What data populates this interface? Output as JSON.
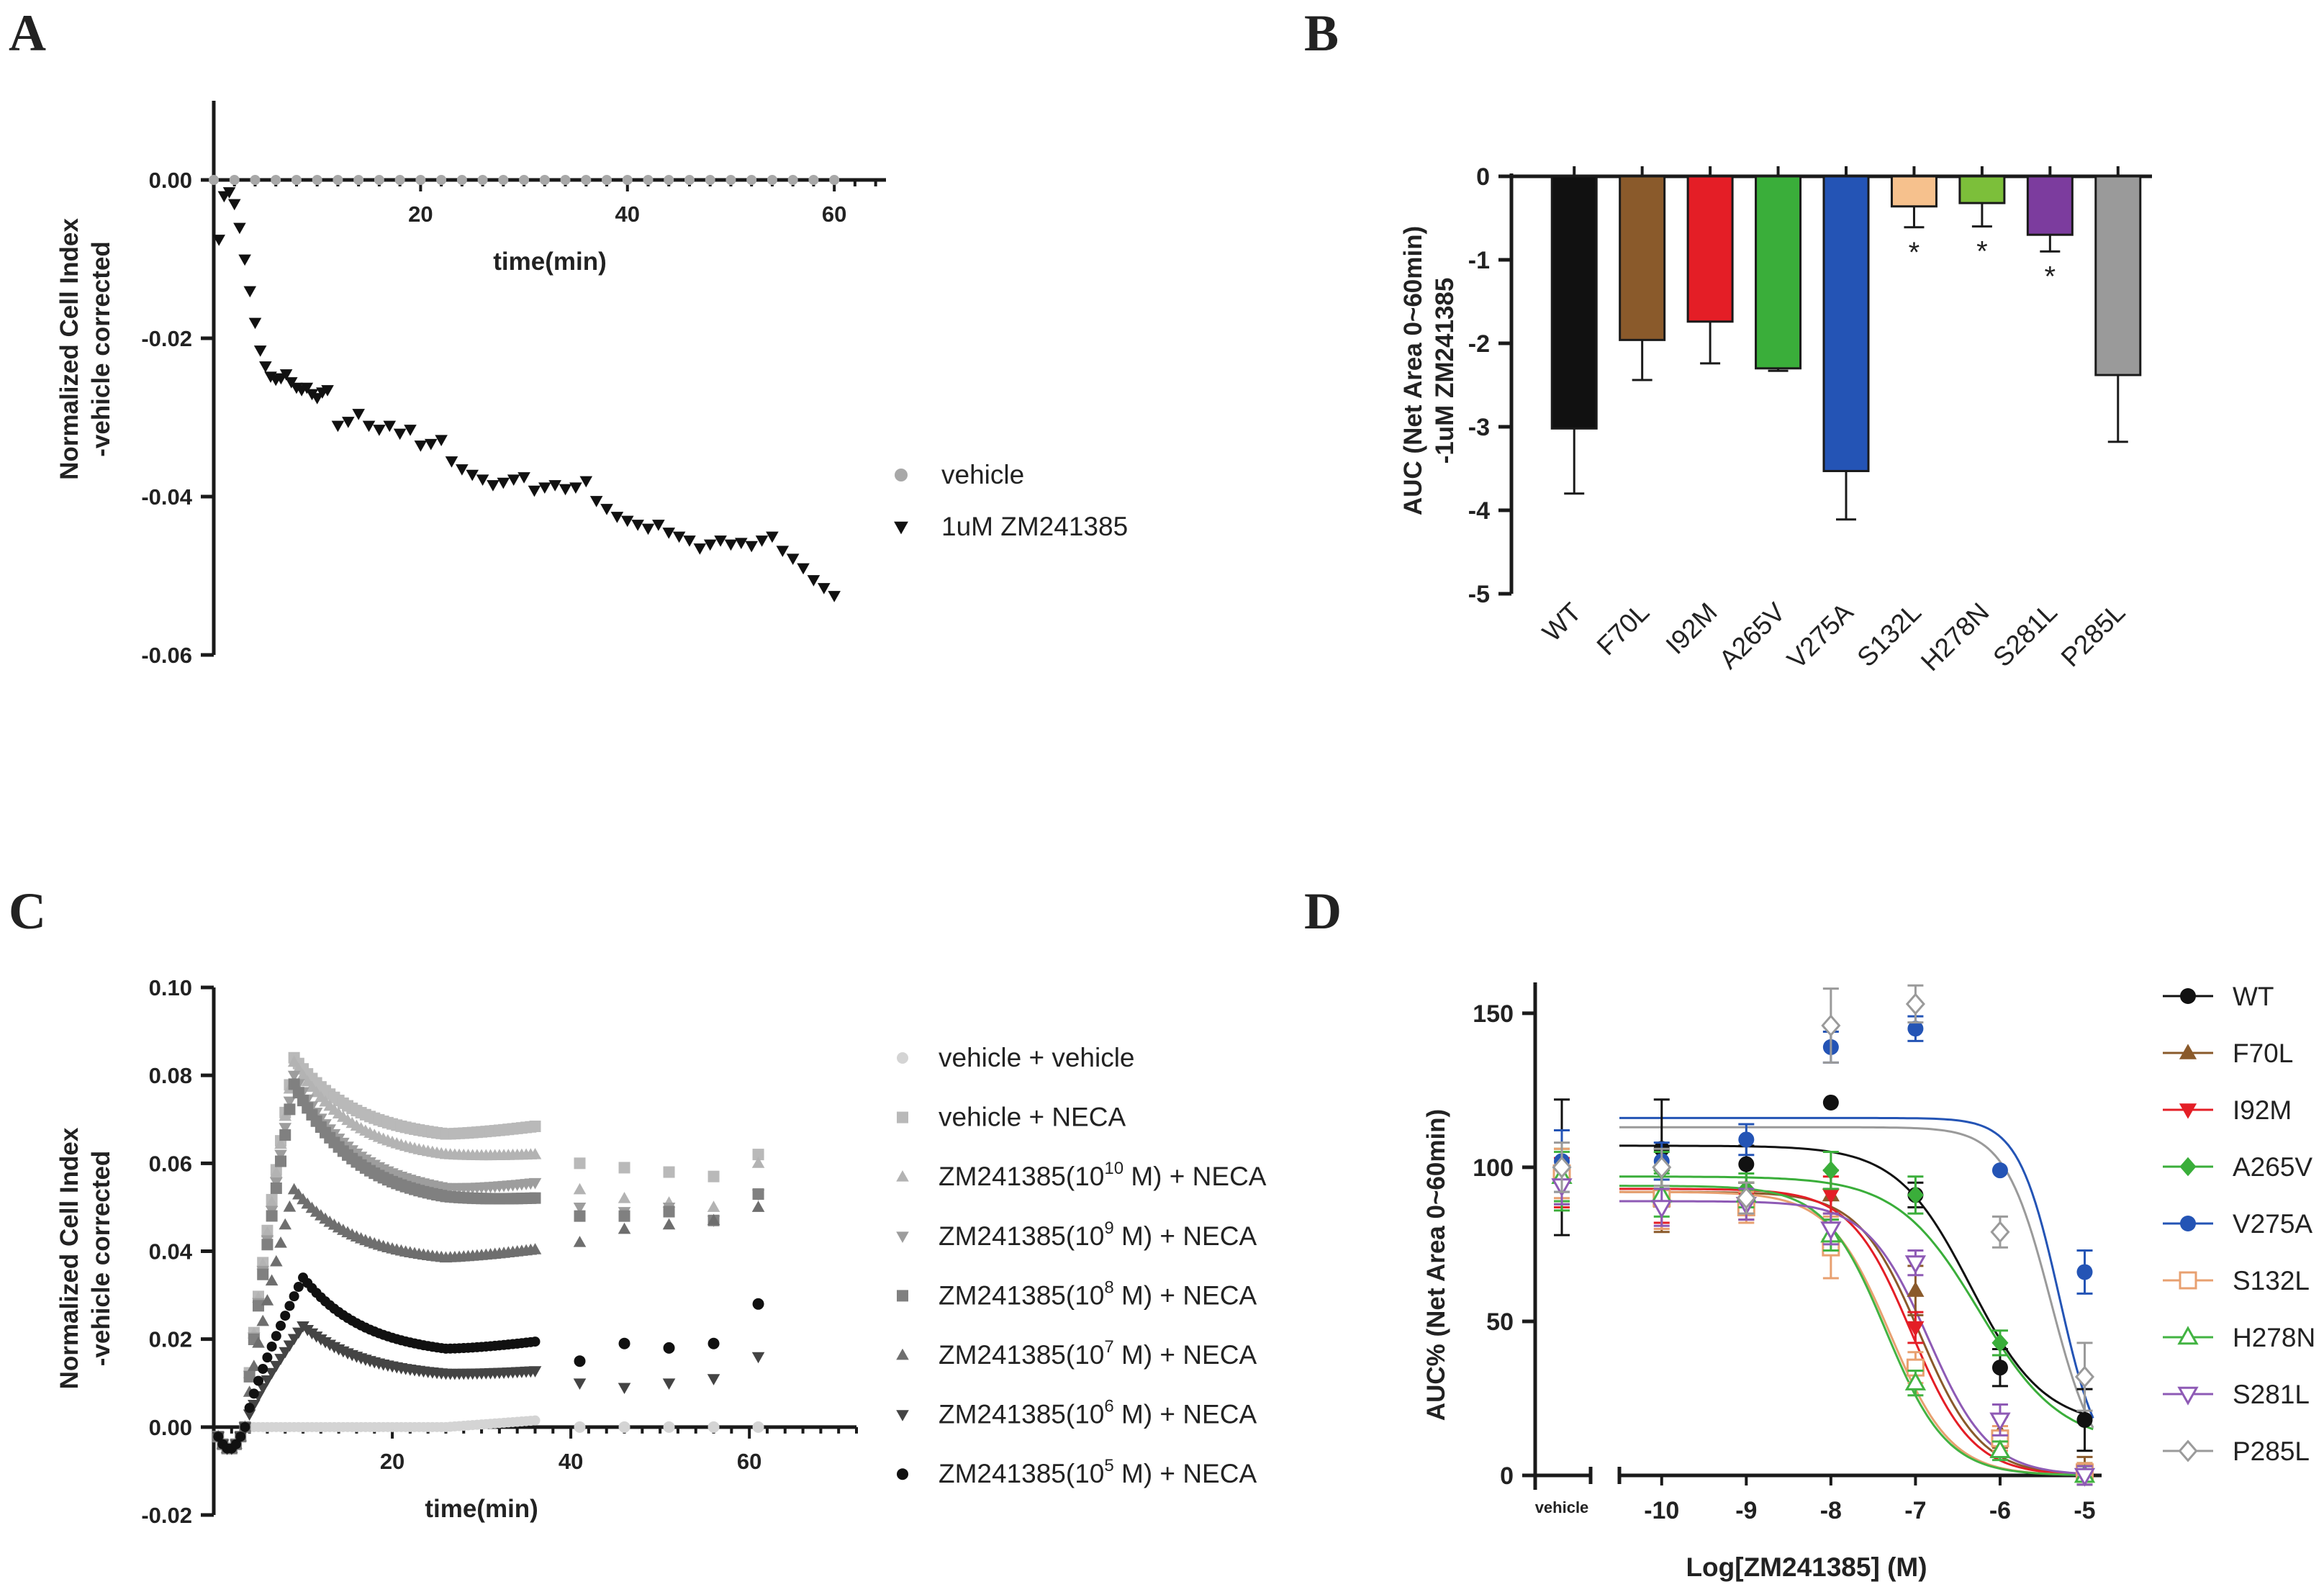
{
  "panel_labels": {
    "a": "A",
    "b": "B",
    "c": "C",
    "d": "D"
  },
  "colors": {
    "axis": "#1a1a1a",
    "grey": "#a8a8a8",
    "black": "#111111",
    "WT": "#111111",
    "F70L": "#8a5a2b",
    "I92M": "#e41e26",
    "A265V": "#3aae3a",
    "V275A": "#2454b5",
    "S132L": "#f6c18d",
    "H278N": "#7cbf3a",
    "S281L": "#7c3c9e",
    "P285L": "#9a9a9a",
    "D_S132L": "#e8a070",
    "D_H278N": "#42b342",
    "D_S281L": "#8e5ab5"
  },
  "chart_data": [
    {
      "panel": "A",
      "type": "scatter",
      "title": "",
      "xlabel": "time(min)",
      "ylabel": "Normalized Cell Index -vehicle corrected",
      "ylabel_lines": [
        "Normalized Cell Index",
        "-vehicle corrected"
      ],
      "xlim": [
        0,
        65
      ],
      "ylim": [
        -0.06,
        0.01
      ],
      "xticks": [
        20,
        40,
        60
      ],
      "yticks": [
        {
          "v": 0,
          "label": "0.00"
        },
        {
          "v": -0.02,
          "label": "-0.02"
        },
        {
          "v": -0.04,
          "label": "-0.04"
        },
        {
          "v": -0.06,
          "label": "-0.06"
        }
      ],
      "legend": [
        {
          "label": "vehicle",
          "marker": "circle",
          "color": "#a8a8a8"
        },
        {
          "label": "1uM ZM241385",
          "marker": "tri-down",
          "color": "#111111"
        }
      ],
      "series": [
        {
          "name": "vehicle",
          "marker": "circle",
          "color": "#a8a8a8",
          "x": [
            0,
            2,
            4,
            6,
            8,
            10,
            12,
            14,
            16,
            18,
            20,
            22,
            24,
            26,
            28,
            30,
            32,
            34,
            36,
            38,
            40,
            42,
            44,
            46,
            48,
            50,
            52,
            54,
            56,
            58,
            60
          ],
          "y": [
            0,
            0,
            0,
            0,
            0,
            0,
            0,
            0,
            0,
            0,
            0,
            0,
            0,
            0,
            0,
            0,
            0,
            0,
            0,
            0,
            0,
            0,
            0,
            0,
            0,
            0,
            0,
            0,
            0,
            0,
            0
          ]
        },
        {
          "name": "1uM ZM241385",
          "marker": "tri-down",
          "color": "#111111",
          "x": [
            0.5,
            1,
            1.5,
            2,
            2.5,
            3,
            3.5,
            4,
            4.5,
            5,
            5.5,
            6,
            6.5,
            7,
            7.5,
            8,
            8.5,
            9,
            9.5,
            10,
            10.5,
            11,
            12,
            13,
            14,
            15,
            16,
            17,
            18,
            19,
            20,
            21,
            22,
            23,
            24,
            25,
            26,
            27,
            28,
            29,
            30,
            31,
            32,
            33,
            34,
            35,
            36,
            37,
            38,
            39,
            40,
            41,
            42,
            43,
            44,
            45,
            46,
            47,
            48,
            49,
            50,
            51,
            52,
            53,
            54,
            55,
            56,
            57,
            58,
            59,
            60
          ],
          "y": [
            -0.0075,
            -0.002,
            -0.0015,
            -0.003,
            -0.006,
            -0.01,
            -0.014,
            -0.018,
            -0.0215,
            -0.0235,
            -0.0248,
            -0.0252,
            -0.025,
            -0.0245,
            -0.0255,
            -0.0262,
            -0.0265,
            -0.0262,
            -0.027,
            -0.0275,
            -0.0268,
            -0.0265,
            -0.031,
            -0.0305,
            -0.0295,
            -0.031,
            -0.0315,
            -0.031,
            -0.032,
            -0.0315,
            -0.0335,
            -0.0333,
            -0.0328,
            -0.0355,
            -0.0365,
            -0.0372,
            -0.0378,
            -0.0385,
            -0.0382,
            -0.0378,
            -0.0375,
            -0.0392,
            -0.0388,
            -0.0385,
            -0.039,
            -0.0388,
            -0.038,
            -0.0405,
            -0.0415,
            -0.0425,
            -0.043,
            -0.0435,
            -0.044,
            -0.0435,
            -0.0445,
            -0.045,
            -0.0455,
            -0.0465,
            -0.046,
            -0.0455,
            -0.046,
            -0.0458,
            -0.0462,
            -0.0455,
            -0.045,
            -0.0468,
            -0.0478,
            -0.049,
            -0.0505,
            -0.0515,
            -0.0525
          ]
        }
      ]
    },
    {
      "panel": "B",
      "type": "bar",
      "xlabel": "",
      "ylabel": "AUC (Net Area 0~60min) -1uM ZM241385",
      "ylabel_lines": [
        "AUC (Net Area 0~60min)",
        "-1uM ZM241385"
      ],
      "ylim": [
        -5,
        0
      ],
      "yticks": [
        0,
        -1,
        -2,
        -3,
        -4,
        -5
      ],
      "categories": [
        "WT",
        "F70L",
        "I92M",
        "A265V",
        "V275A",
        "S132L",
        "H278N",
        "S281L",
        "P285L"
      ],
      "values": [
        -3.02,
        -1.96,
        -1.74,
        -2.3,
        -3.53,
        -0.36,
        -0.32,
        -0.7,
        -2.38
      ],
      "errors": [
        0.78,
        0.48,
        0.5,
        0.03,
        0.58,
        0.25,
        0.28,
        0.2,
        0.8
      ],
      "significance": [
        "",
        "",
        "",
        "",
        "",
        "*",
        "*",
        "*",
        ""
      ]
    },
    {
      "panel": "C",
      "type": "scatter",
      "xlabel": "time(min)",
      "ylabel": "Normalized Cell Index -vehicle corrected",
      "ylabel_lines": [
        "Normalized Cell Index",
        "-vehicle corrected"
      ],
      "xlim": [
        0,
        72
      ],
      "ylim": [
        -0.02,
        0.1
      ],
      "xticks": [
        20,
        40,
        60
      ],
      "yticks": [
        {
          "v": 0.1,
          "label": "0.10"
        },
        {
          "v": 0.08,
          "label": "0.08"
        },
        {
          "v": 0.06,
          "label": "0.06"
        },
        {
          "v": 0.04,
          "label": "0.04"
        },
        {
          "v": 0.02,
          "label": "0.02"
        },
        {
          "v": 0,
          "label": "0.00"
        },
        {
          "v": -0.02,
          "label": "-0.02"
        }
      ],
      "legend": [
        {
          "pre": "vehicle + vehicle",
          "sup": "",
          "post": "",
          "marker": "circle",
          "color": "#d4d4d4"
        },
        {
          "pre": "vehicle + NECA",
          "sup": "",
          "post": "",
          "marker": "square",
          "color": "#b9b9b9"
        },
        {
          "pre": "ZM241385(10",
          "sup": "10",
          "post": " M) + NECA",
          "marker": "tri-up",
          "color": "#b3b3b3"
        },
        {
          "pre": "ZM241385(10",
          "sup": "9",
          "post": " M) + NECA",
          "marker": "tri-down",
          "color": "#9d9d9d"
        },
        {
          "pre": "ZM241385(10",
          "sup": "8",
          "post": " M) + NECA",
          "marker": "square",
          "color": "#808080"
        },
        {
          "pre": "ZM241385(10",
          "sup": "7",
          "post": " M) + NECA",
          "marker": "tri-up",
          "color": "#6e6e6e"
        },
        {
          "pre": "ZM241385(10",
          "sup": "6",
          "post": " M) + NECA",
          "marker": "tri-down",
          "color": "#444444"
        },
        {
          "pre": "ZM241385(10",
          "sup": "5",
          "post": " M) + NECA",
          "marker": "circle",
          "color": "#111111"
        }
      ],
      "series": [
        {
          "name": "vehicle + vehicle",
          "marker": "circle",
          "color": "#d4d4d4",
          "peak": 0.0,
          "peak_t": 9,
          "plateau": 0.0,
          "sparse": [
            0,
            0,
            0,
            0,
            0
          ]
        },
        {
          "name": "vehicle + NECA",
          "marker": "square",
          "color": "#b9b9b9",
          "peak": 0.084,
          "peak_t": 9,
          "plateau": 0.065,
          "sparse": [
            0.06,
            0.059,
            0.058,
            0.057,
            0.062
          ]
        },
        {
          "name": "ZM241385(10^10 M) + NECA",
          "marker": "tri-up",
          "color": "#b3b3b3",
          "peak": 0.083,
          "peak_t": 9,
          "plateau": 0.06,
          "sparse": [
            0.054,
            0.052,
            0.051,
            0.05,
            0.06
          ]
        },
        {
          "name": "ZM241385(10^9 M) + NECA",
          "marker": "tri-down",
          "color": "#9d9d9d",
          "peak": 0.08,
          "peak_t": 9,
          "plateau": 0.052,
          "sparse": [
            0.05,
            0.049,
            0.05,
            0.047,
            0.053
          ]
        },
        {
          "name": "ZM241385(10^8 M) + NECA",
          "marker": "square",
          "color": "#808080",
          "peak": 0.078,
          "peak_t": 9,
          "plateau": 0.05,
          "sparse": [
            0.048,
            0.048,
            0.049,
            0.047,
            0.053
          ]
        },
        {
          "name": "ZM241385(10^7 M) + NECA",
          "marker": "tri-up",
          "color": "#6e6e6e",
          "peak": 0.054,
          "peak_t": 9,
          "plateau": 0.037,
          "sparse": [
            0.042,
            0.045,
            0.046,
            0.047,
            0.05
          ]
        },
        {
          "name": "ZM241385(10^6 M) + NECA",
          "marker": "tri-down",
          "color": "#444444",
          "peak": 0.023,
          "peak_t": 10,
          "plateau": 0.011,
          "sparse": [
            0.01,
            0.009,
            0.01,
            0.011,
            0.016
          ]
        },
        {
          "name": "ZM241385(10^5 M) + NECA",
          "marker": "circle",
          "color": "#111111",
          "peak": 0.034,
          "peak_t": 10,
          "plateau": 0.016,
          "sparse": [
            0.015,
            0.019,
            0.018,
            0.019,
            0.028
          ]
        }
      ],
      "sparse_x": [
        41,
        46,
        51,
        56,
        61
      ]
    },
    {
      "panel": "D",
      "type": "scatter",
      "xlabel": "Log[ZM241385] (M)",
      "ylabel": "AUC% (Net Area 0~60min)",
      "xlim": [
        -10.5,
        -4.8
      ],
      "ylim": [
        0,
        160
      ],
      "xticks": [
        -10,
        -9,
        -8,
        -7,
        -6,
        -5
      ],
      "yticks": [
        0,
        50,
        100,
        150
      ],
      "vehicle_label": "vehicle",
      "x": [
        -10,
        -9,
        -8,
        -7,
        -6,
        -5
      ],
      "series": [
        {
          "name": "WT",
          "marker": "circle-filled",
          "color": "#111111",
          "vehicle": 100,
          "verr": 22,
          "values": [
            106,
            101,
            121,
            91,
            35,
            18
          ],
          "err": [
            16,
            6,
            0,
            4,
            6,
            10
          ],
          "top": 107,
          "bottom": 16,
          "ec50": -6.35,
          "hill": 1.0
        },
        {
          "name": "F70L",
          "marker": "tri-up-filled",
          "color": "#8a5a2b",
          "vehicle": 100,
          "verr": 12,
          "values": [
            89,
            89,
            91,
            60,
            14,
            2
          ],
          "err": [
            10,
            6,
            8,
            8,
            5,
            4
          ],
          "top": 92,
          "bottom": 0,
          "ec50": -6.95,
          "hill": 1.2
        },
        {
          "name": "I92M",
          "marker": "tri-down-filled",
          "color": "#e41e26",
          "vehicle": 95,
          "verr": 8,
          "values": [
            91,
            90,
            91,
            48,
            12,
            0
          ],
          "err": [
            9,
            5,
            6,
            5,
            4,
            3
          ],
          "top": 93,
          "bottom": 0,
          "ec50": -7.05,
          "hill": 1.2
        },
        {
          "name": "A265V",
          "marker": "diamond-filled",
          "color": "#3aae3a",
          "vehicle": 96,
          "verr": 10,
          "values": [
            99,
            93,
            99,
            91,
            43,
            1
          ],
          "err": [
            6,
            5,
            6,
            6,
            4,
            3
          ],
          "top": 97,
          "bottom": 10,
          "ec50": -6.25,
          "hill": 0.9
        },
        {
          "name": "V275A",
          "marker": "circle-filled",
          "color": "#2454b5",
          "vehicle": 102,
          "verr": 10,
          "values": [
            102,
            109,
            139,
            145,
            99,
            66
          ],
          "err": [
            6,
            5,
            5,
            4,
            0,
            7
          ],
          "top": 116,
          "bottom": 0,
          "ec50": -5.3,
          "hill": 1.8
        },
        {
          "name": "S132L",
          "marker": "square-open",
          "color": "#e8a070",
          "vehicle": 98,
          "verr": 8,
          "values": [
            90,
            87,
            74,
            35,
            12,
            1
          ],
          "err": [
            10,
            5,
            10,
            5,
            4,
            3
          ],
          "top": 92,
          "bottom": 0,
          "ec50": -7.3,
          "hill": 1.2
        },
        {
          "name": "H278N",
          "marker": "tri-up-open",
          "color": "#42b342",
          "vehicle": 97,
          "verr": 8,
          "values": [
            91,
            91,
            78,
            30,
            8,
            0
          ],
          "err": [
            7,
            4,
            5,
            4,
            3,
            3
          ],
          "top": 94,
          "bottom": 0,
          "ec50": -7.35,
          "hill": 1.2
        },
        {
          "name": "S281L",
          "marker": "tri-down-open",
          "color": "#8e5ab5",
          "vehicle": 94,
          "verr": 6,
          "values": [
            87,
            88,
            80,
            69,
            18,
            0
          ],
          "err": [
            6,
            5,
            5,
            4,
            5,
            3
          ],
          "top": 89,
          "bottom": 0,
          "ec50": -6.85,
          "hill": 1.2
        },
        {
          "name": "P285L",
          "marker": "diamond-open",
          "color": "#9a9a9a",
          "vehicle": 100,
          "verr": 8,
          "values": [
            100,
            90,
            146,
            153,
            79,
            32
          ],
          "err": [
            6,
            5,
            12,
            6,
            5,
            11
          ],
          "top": 113,
          "bottom": 0,
          "ec50": -5.4,
          "hill": 1.6
        }
      ]
    }
  ]
}
